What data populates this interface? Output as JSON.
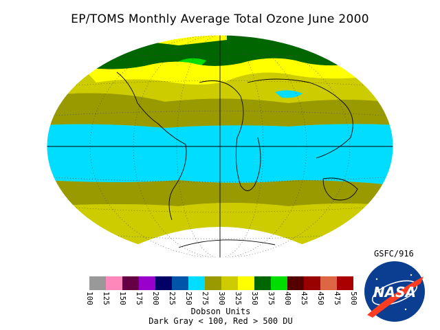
{
  "title": "EP/TOMS Monthly Average Total Ozone June 2000",
  "credit": "GSFC/916",
  "legend": {
    "units_label": "Dobson Units",
    "note": "Dark Gray < 100, Red > 500 DU",
    "ticks": [
      "100",
      "125",
      "150",
      "175",
      "200",
      "225",
      "250",
      "275",
      "300",
      "325",
      "350",
      "375",
      "400",
      "425",
      "450",
      "475",
      "500"
    ],
    "colors": [
      "#999999",
      "#ff88bb",
      "#660044",
      "#9900cc",
      "#000066",
      "#0055aa",
      "#00ddff",
      "#999900",
      "#cccc00",
      "#ffff00",
      "#006600",
      "#00dd00",
      "#550000",
      "#990000",
      "#dd6644",
      "#aa0000"
    ]
  },
  "map": {
    "projection": "Hammer-Aitoff",
    "bands": [
      {
        "label": "350-375",
        "color": "#006600"
      },
      {
        "label": "375-400",
        "color": "#00dd00"
      },
      {
        "label": "325-350",
        "color": "#ffff00"
      },
      {
        "label": "300-325",
        "color": "#cccc00"
      },
      {
        "label": "275-300",
        "color": "#999900"
      },
      {
        "label": "250-275",
        "color": "#00ddff"
      }
    ],
    "no_data_color": "#ffffff"
  },
  "logo": {
    "text": "NASA"
  }
}
